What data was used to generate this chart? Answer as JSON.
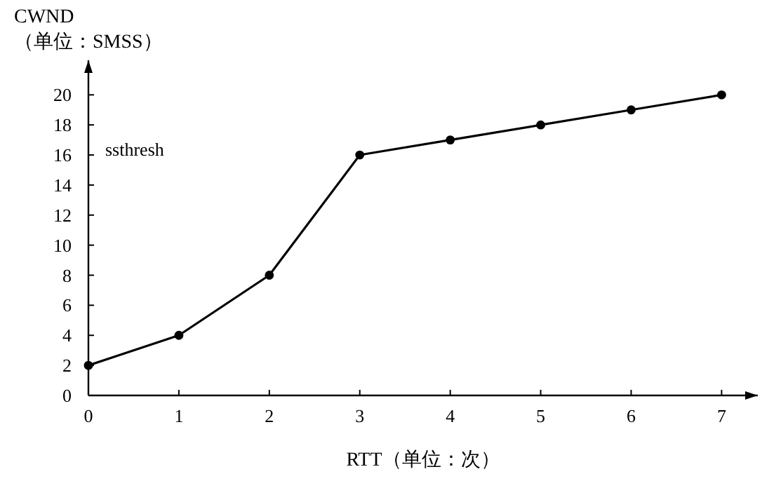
{
  "chart_data": {
    "type": "line",
    "xlabel": "RTT（单位：次）",
    "ylabel": "CWND\n（单位：SMSS）",
    "x": [
      0,
      1,
      2,
      3,
      4,
      5,
      6,
      7
    ],
    "series": [
      {
        "color": "#000000",
        "values": [
          2,
          4,
          8,
          16,
          17,
          18,
          19,
          20
        ]
      }
    ],
    "marker": "circle",
    "line_style": "solid",
    "xlim": [
      0,
      7.4
    ],
    "ylim": [
      0,
      22.3
    ],
    "xticks": [
      0,
      1,
      2,
      3,
      4,
      5,
      6,
      7
    ],
    "yticks": [
      0,
      2,
      4,
      6,
      8,
      10,
      12,
      14,
      16,
      18,
      20
    ],
    "annotations": [
      "ssthresh"
    ],
    "grid": false
  }
}
